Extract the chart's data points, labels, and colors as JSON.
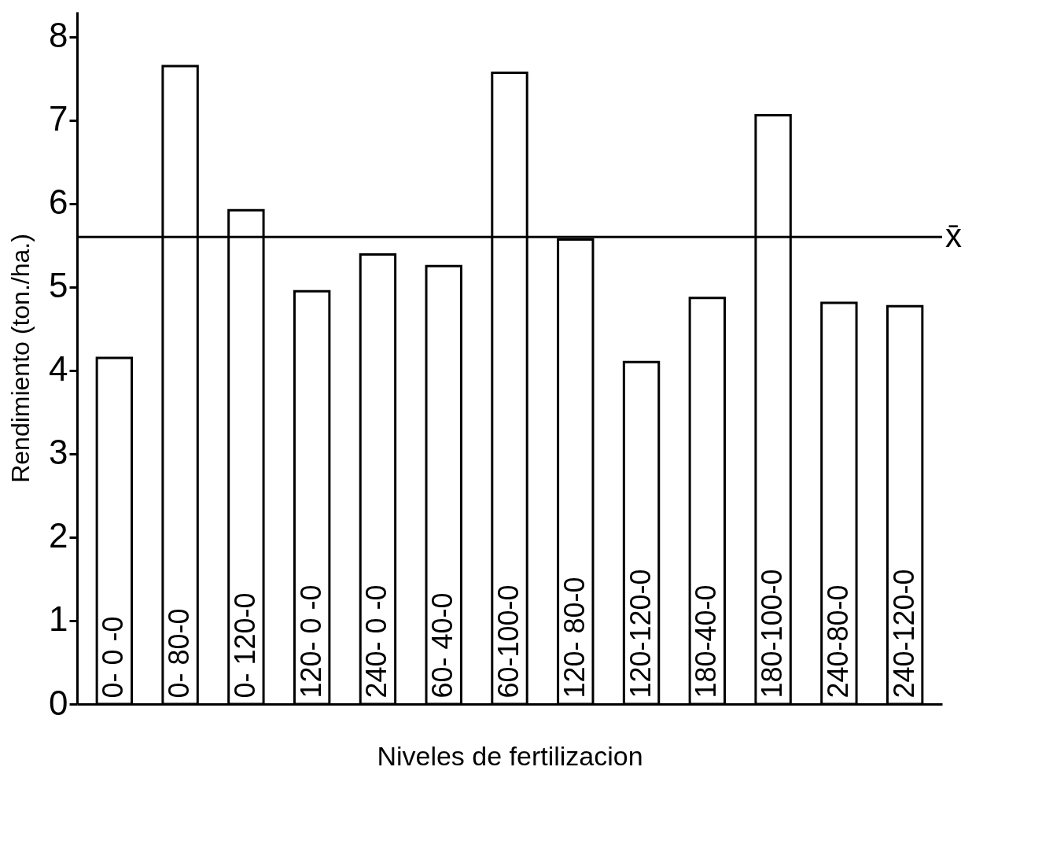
{
  "chart_data": {
    "type": "bar",
    "xlabel": "Niveles  de  fertilizacion",
    "ylabel": "Rendimiento (ton./ha.)",
    "categories": [
      "0- 0 -0",
      "0- 80-0",
      "0- 120-0",
      "120- 0 -0",
      "240- 0 -0",
      "60- 40-0",
      "60-100-0",
      "120- 80-0",
      "120-120-0",
      "180-40-0",
      "180-100-0",
      "240-80-0",
      "240-120-0"
    ],
    "values": [
      4.15,
      7.65,
      5.92,
      4.95,
      5.39,
      5.25,
      7.57,
      5.57,
      4.1,
      4.87,
      7.06,
      4.81,
      4.77
    ],
    "color": "#ffffff",
    "ylim": [
      0,
      8.3
    ],
    "yticks": [
      0,
      1,
      2,
      3,
      4,
      5,
      6,
      7,
      8
    ],
    "grid": false,
    "ref_lines": [
      {
        "axis": "y",
        "value": 5.6,
        "label": "x̄"
      }
    ]
  }
}
